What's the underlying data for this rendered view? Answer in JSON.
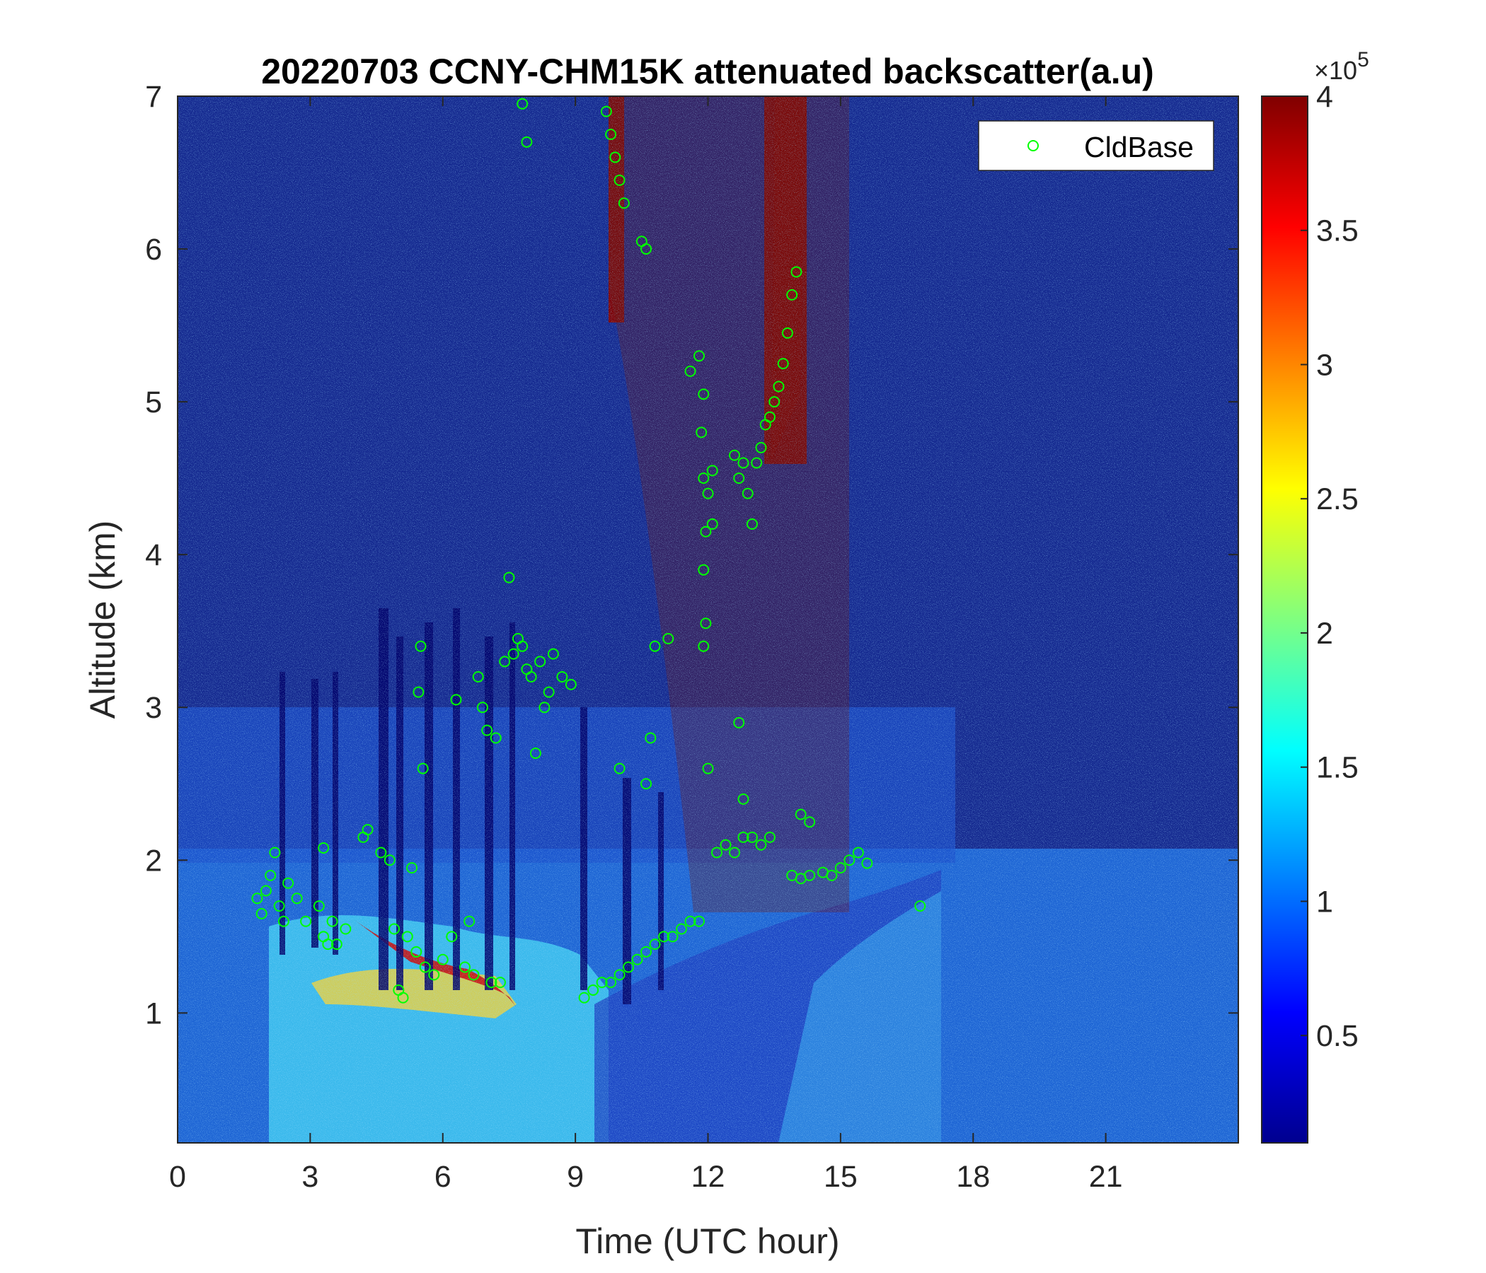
{
  "chart_data": {
    "type": "heatmap",
    "title": "20220703 CCNY-CHM15K attenuated backscatter(a.u)",
    "xlabel": "Time (UTC hour)",
    "ylabel": "Altitude (km)",
    "xlim": [
      0,
      24
    ],
    "ylim": [
      0.15,
      7
    ],
    "x_ticks": [
      0,
      3,
      6,
      9,
      12,
      15,
      18,
      21
    ],
    "x_tick_labels": [
      "0",
      "3",
      "6",
      "9",
      "12",
      "15",
      "18",
      "21"
    ],
    "y_ticks": [
      1,
      2,
      3,
      4,
      5,
      6,
      7
    ],
    "y_tick_labels": [
      "1",
      "2",
      "3",
      "4",
      "5",
      "6",
      "7"
    ],
    "colorbar": {
      "colormap": "jet",
      "clim": [
        0.1,
        4
      ],
      "ticks": [
        0.5,
        1,
        1.5,
        2,
        2.5,
        3,
        3.5,
        4
      ],
      "tick_labels": [
        "0.5",
        "1",
        "1.5",
        "2",
        "2.5",
        "3",
        "3.5",
        "4"
      ],
      "multiplier_base": "×10",
      "multiplier_exp": "5"
    },
    "legend": {
      "placement": "top-right",
      "entries": [
        "CldBase"
      ]
    },
    "grid": false,
    "cloud_base_color": "#00ff00",
    "cloud_base_series": {
      "name": "CldBase",
      "points": [
        [
          1.8,
          1.75
        ],
        [
          1.9,
          1.65
        ],
        [
          2.0,
          1.8
        ],
        [
          2.1,
          1.9
        ],
        [
          2.2,
          2.05
        ],
        [
          2.3,
          1.7
        ],
        [
          2.4,
          1.6
        ],
        [
          2.5,
          1.85
        ],
        [
          2.7,
          1.75
        ],
        [
          2.9,
          1.6
        ],
        [
          3.2,
          1.7
        ],
        [
          3.3,
          1.5
        ],
        [
          3.4,
          1.45
        ],
        [
          3.5,
          1.6
        ],
        [
          3.6,
          1.45
        ],
        [
          3.8,
          1.55
        ],
        [
          3.3,
          2.08
        ],
        [
          4.2,
          2.15
        ],
        [
          4.3,
          2.2
        ],
        [
          4.6,
          2.05
        ],
        [
          4.8,
          2.0
        ],
        [
          4.9,
          1.55
        ],
        [
          5.0,
          1.15
        ],
        [
          5.1,
          1.1
        ],
        [
          5.2,
          1.5
        ],
        [
          5.3,
          1.95
        ],
        [
          5.4,
          1.4
        ],
        [
          5.45,
          3.1
        ],
        [
          5.5,
          3.4
        ],
        [
          5.55,
          2.6
        ],
        [
          5.6,
          1.3
        ],
        [
          5.8,
          1.25
        ],
        [
          6.0,
          1.35
        ],
        [
          6.2,
          1.5
        ],
        [
          6.3,
          3.05
        ],
        [
          6.5,
          1.3
        ],
        [
          6.6,
          1.6
        ],
        [
          6.7,
          1.25
        ],
        [
          6.8,
          3.2
        ],
        [
          6.9,
          3.0
        ],
        [
          7.0,
          2.85
        ],
        [
          7.1,
          1.2
        ],
        [
          7.2,
          2.8
        ],
        [
          7.3,
          1.2
        ],
        [
          7.4,
          3.3
        ],
        [
          7.5,
          3.85
        ],
        [
          7.6,
          3.35
        ],
        [
          7.7,
          3.45
        ],
        [
          7.8,
          3.4
        ],
        [
          7.9,
          3.25
        ],
        [
          8.0,
          3.2
        ],
        [
          8.1,
          2.7
        ],
        [
          8.2,
          3.3
        ],
        [
          8.3,
          3.0
        ],
        [
          8.4,
          3.1
        ],
        [
          8.5,
          3.35
        ],
        [
          8.7,
          3.2
        ],
        [
          8.9,
          3.15
        ],
        [
          9.2,
          1.1
        ],
        [
          9.4,
          1.15
        ],
        [
          9.6,
          1.2
        ],
        [
          9.8,
          1.2
        ],
        [
          10.0,
          1.25
        ],
        [
          10.2,
          1.3
        ],
        [
          10.4,
          1.35
        ],
        [
          10.6,
          1.4
        ],
        [
          10.8,
          1.45
        ],
        [
          11.0,
          1.5
        ],
        [
          11.2,
          1.5
        ],
        [
          11.4,
          1.55
        ],
        [
          11.6,
          1.6
        ],
        [
          11.8,
          1.6
        ],
        [
          10.0,
          2.6
        ],
        [
          10.6,
          2.5
        ],
        [
          10.7,
          2.8
        ],
        [
          10.8,
          3.4
        ],
        [
          11.1,
          3.45
        ],
        [
          7.8,
          6.95
        ],
        [
          7.9,
          6.7
        ],
        [
          9.7,
          6.9
        ],
        [
          9.8,
          6.75
        ],
        [
          9.9,
          6.6
        ],
        [
          10.0,
          6.45
        ],
        [
          10.1,
          6.3
        ],
        [
          10.5,
          6.05
        ],
        [
          10.6,
          6.0
        ],
        [
          11.6,
          5.2
        ],
        [
          11.8,
          5.3
        ],
        [
          11.9,
          5.05
        ],
        [
          11.85,
          4.8
        ],
        [
          11.9,
          4.5
        ],
        [
          12.0,
          4.4
        ],
        [
          12.1,
          4.55
        ],
        [
          11.95,
          4.15
        ],
        [
          11.9,
          3.9
        ],
        [
          12.1,
          4.2
        ],
        [
          11.95,
          3.55
        ],
        [
          11.9,
          3.4
        ],
        [
          12.6,
          4.65
        ],
        [
          12.7,
          4.5
        ],
        [
          12.8,
          4.6
        ],
        [
          12.9,
          4.4
        ],
        [
          13.0,
          4.2
        ],
        [
          13.1,
          4.6
        ],
        [
          13.2,
          4.7
        ],
        [
          13.3,
          4.85
        ],
        [
          13.4,
          4.9
        ],
        [
          13.5,
          5.0
        ],
        [
          13.6,
          5.1
        ],
        [
          13.7,
          5.25
        ],
        [
          13.8,
          5.45
        ],
        [
          13.9,
          5.7
        ],
        [
          14.0,
          5.85
        ],
        [
          12.0,
          2.6
        ],
        [
          12.7,
          2.9
        ],
        [
          12.8,
          2.4
        ],
        [
          12.2,
          2.05
        ],
        [
          12.4,
          2.1
        ],
        [
          12.6,
          2.05
        ],
        [
          12.8,
          2.15
        ],
        [
          13.0,
          2.15
        ],
        [
          13.2,
          2.1
        ],
        [
          13.4,
          2.15
        ],
        [
          14.1,
          2.3
        ],
        [
          14.3,
          2.25
        ],
        [
          13.9,
          1.9
        ],
        [
          14.1,
          1.88
        ],
        [
          14.3,
          1.9
        ],
        [
          14.6,
          1.92
        ],
        [
          14.8,
          1.9
        ],
        [
          15.0,
          1.95
        ],
        [
          15.2,
          2.0
        ],
        [
          15.4,
          2.05
        ],
        [
          15.6,
          1.98
        ],
        [
          16.8,
          1.7
        ]
      ]
    }
  }
}
